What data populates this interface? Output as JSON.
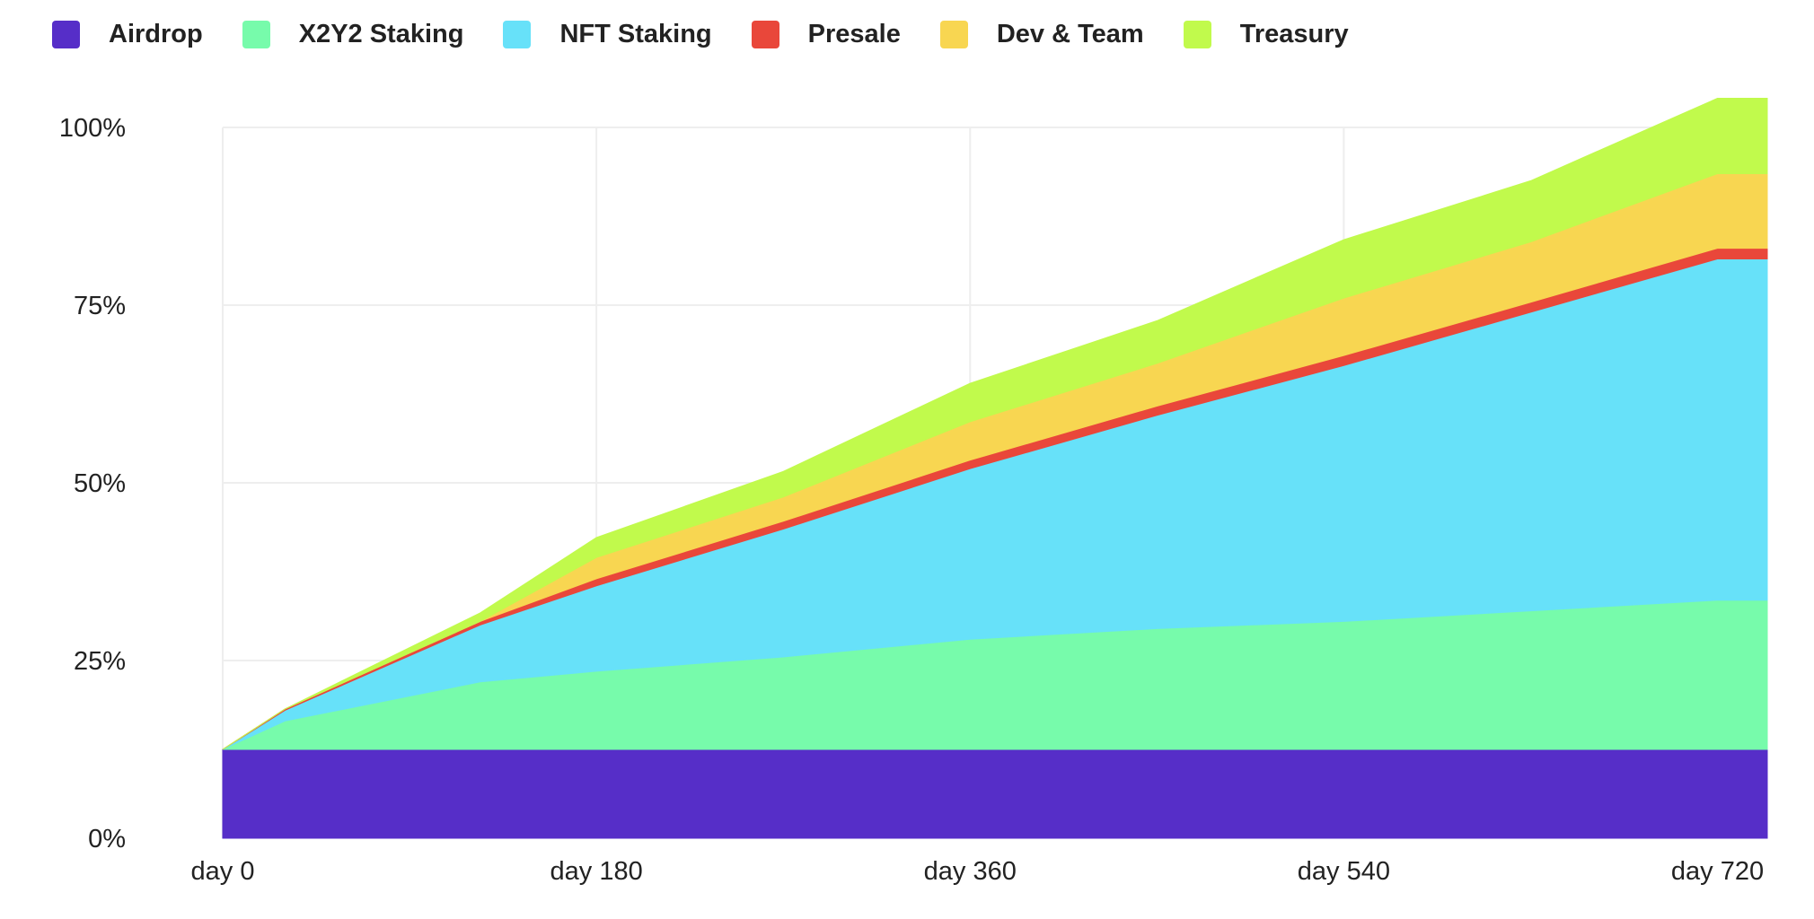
{
  "chart_data": {
    "type": "area",
    "stacked": true,
    "title": "",
    "xlabel": "",
    "ylabel": "",
    "x_unit_prefix": "day",
    "x": [
      0,
      30,
      124,
      180,
      270,
      360,
      450,
      540,
      630,
      720,
      744
    ],
    "xlim": [
      0,
      744
    ],
    "ylim": [
      0,
      100
    ],
    "x_ticks": [
      "day 0",
      "day 180",
      "day 360",
      "day 540",
      "day 720"
    ],
    "x_tick_values": [
      0,
      180,
      360,
      540,
      720
    ],
    "y_ticks": [
      "0%",
      "25%",
      "50%",
      "75%",
      "100%"
    ],
    "y_tick_values": [
      0,
      25,
      50,
      75,
      100
    ],
    "grid": true,
    "legend_position": "top-left",
    "series": [
      {
        "name": "Airdrop",
        "color": "#562ec8",
        "values": [
          12.5,
          12.5,
          12.5,
          12.5,
          12.5,
          12.5,
          12.5,
          12.5,
          12.5,
          12.5,
          12.5
        ]
      },
      {
        "name": "X2Y2 Staking",
        "color": "#77fbab",
        "values": [
          0,
          4.0,
          9.5,
          11.0,
          13.0,
          15.5,
          17.0,
          18.0,
          19.5,
          21.0,
          21.0
        ]
      },
      {
        "name": "NFT Staking",
        "color": "#67e1f9",
        "values": [
          0,
          1.5,
          8.0,
          12.0,
          18.0,
          24.0,
          30.0,
          36.0,
          42.0,
          48.0,
          48.0
        ]
      },
      {
        "name": "Presale",
        "color": "#e9473a",
        "values": [
          0,
          0.2,
          0.5,
          1.0,
          1.1,
          1.2,
          1.3,
          1.4,
          1.4,
          1.5,
          1.5
        ]
      },
      {
        "name": "Dev & Team",
        "color": "#f8d651",
        "values": [
          0,
          0,
          0,
          3.0,
          3.4,
          5.4,
          6.0,
          8.1,
          8.5,
          10.5,
          10.5
        ]
      },
      {
        "name": "Treasury",
        "color": "#c1fa4c",
        "values": [
          0,
          0,
          1.2,
          2.8,
          3.6,
          5.4,
          6.0,
          8.2,
          8.6,
          10.6,
          10.6
        ]
      }
    ]
  }
}
